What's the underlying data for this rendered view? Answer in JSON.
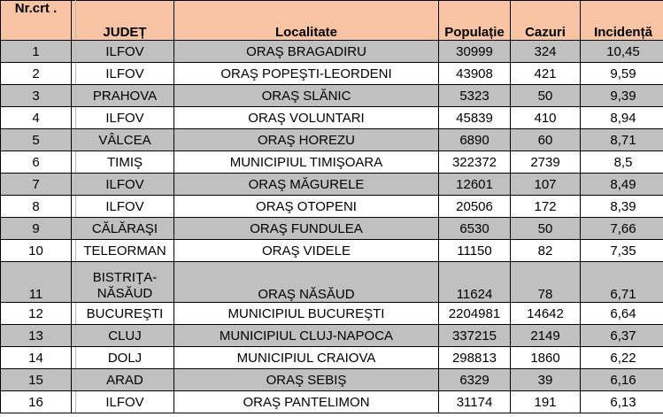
{
  "header": {
    "nr": "Nr.crt .",
    "judet": "JUDEȚ",
    "localitate": "Localitate",
    "populatie": "Populație",
    "cazuri": "Cazuri",
    "incidenta": "Incidență"
  },
  "colors": {
    "header_bg": "#f8c4a4",
    "odd_row_bg": "#c0c0c0",
    "even_row_bg": "#ffffff"
  },
  "rows": [
    {
      "nr": "1",
      "judet": "ILFOV",
      "localitate": "ORAŞ BRAGADIRU",
      "populatie": "30999",
      "cazuri": "324",
      "incidenta": "10,45"
    },
    {
      "nr": "2",
      "judet": "ILFOV",
      "localitate": "ORAŞ POPEŞTI-LEORDENI",
      "populatie": "43908",
      "cazuri": "421",
      "incidenta": "9,59"
    },
    {
      "nr": "3",
      "judet": "PRAHOVA",
      "localitate": "ORAŞ SLĂNIC",
      "populatie": "5323",
      "cazuri": "50",
      "incidenta": "9,39"
    },
    {
      "nr": "4",
      "judet": "ILFOV",
      "localitate": "ORAŞ VOLUNTARI",
      "populatie": "45839",
      "cazuri": "410",
      "incidenta": "8,94"
    },
    {
      "nr": "5",
      "judet": "VÂLCEA",
      "localitate": "ORAŞ HOREZU",
      "populatie": "6890",
      "cazuri": "60",
      "incidenta": "8,71"
    },
    {
      "nr": "6",
      "judet": "TIMIŞ",
      "localitate": "MUNICIPIUL TIMIŞOARA",
      "populatie": "322372",
      "cazuri": "2739",
      "incidenta": "8,5"
    },
    {
      "nr": "7",
      "judet": "ILFOV",
      "localitate": "ORAŞ MĂGURELE",
      "populatie": "12601",
      "cazuri": "107",
      "incidenta": "8,49"
    },
    {
      "nr": "8",
      "judet": "ILFOV",
      "localitate": "ORAŞ OTOPENI",
      "populatie": "20506",
      "cazuri": "172",
      "incidenta": "8,39"
    },
    {
      "nr": "9",
      "judet": "CĂLĂRAŞI",
      "localitate": "ORAŞ FUNDULEA",
      "populatie": "6530",
      "cazuri": "50",
      "incidenta": "7,66"
    },
    {
      "nr": "10",
      "judet": "TELEORMAN",
      "localitate": "ORAŞ VIDELE",
      "populatie": "11150",
      "cazuri": "82",
      "incidenta": "7,35"
    },
    {
      "nr": "11",
      "judet": "BISTRIŢA-NĂSĂUD",
      "localitate": "ORAŞ NĂSĂUD",
      "populatie": "11624",
      "cazuri": "78",
      "incidenta": "6,71"
    },
    {
      "nr": "12",
      "judet": "BUCUREŞTI",
      "localitate": "MUNICIPIUL BUCUREŞTI",
      "populatie": "2204981",
      "cazuri": "14642",
      "incidenta": "6,64"
    },
    {
      "nr": "13",
      "judet": "CLUJ",
      "localitate": "MUNICIPIUL CLUJ-NAPOCA",
      "populatie": "337215",
      "cazuri": "2149",
      "incidenta": "6,37"
    },
    {
      "nr": "14",
      "judet": "DOLJ",
      "localitate": "MUNICIPIUL CRAIOVA",
      "populatie": "298813",
      "cazuri": "1860",
      "incidenta": "6,22"
    },
    {
      "nr": "15",
      "judet": "ARAD",
      "localitate": "ORAŞ SEBIŞ",
      "populatie": "6329",
      "cazuri": "39",
      "incidenta": "6,16"
    },
    {
      "nr": "16",
      "judet": "ILFOV",
      "localitate": "ORAŞ PANTELIMON",
      "populatie": "31174",
      "cazuri": "191",
      "incidenta": "6,13"
    }
  ]
}
